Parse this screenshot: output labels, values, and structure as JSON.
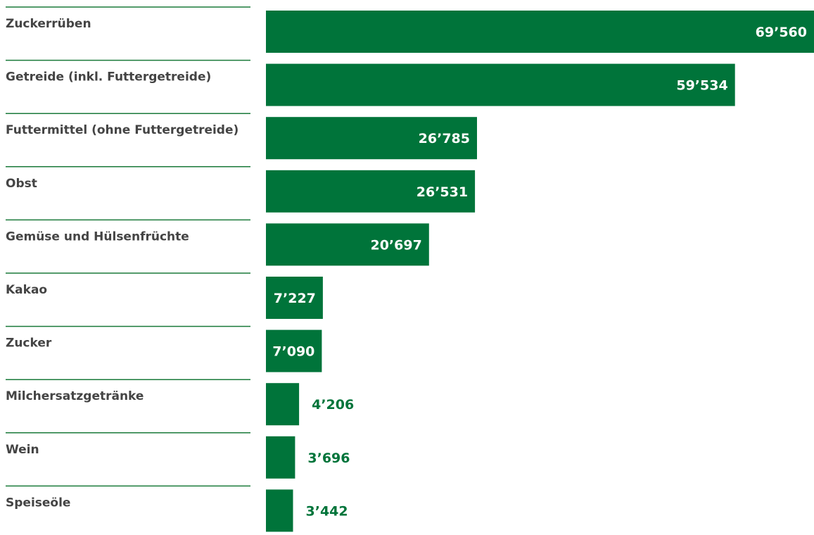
{
  "chart_data": {
    "type": "bar",
    "orientation": "horizontal",
    "categories": [
      "Zuckerrüben",
      "Getreide (inkl. Futtergetreide)",
      "Futtermittel (ohne Futtergetreide)",
      "Obst",
      "Gemüse und Hülsenfrüchte",
      "Kakao",
      "Zucker",
      "Milchersatzgetränke",
      "Wein",
      "Speiseöle"
    ],
    "values": [
      69560,
      59534,
      26785,
      26531,
      20697,
      7227,
      7090,
      4206,
      3696,
      3442
    ],
    "value_labels": [
      "69’560",
      "59’534",
      "26’785",
      "26’531",
      "20’697",
      "7’227",
      "7’090",
      "4’206",
      "3’696",
      "3’442"
    ],
    "title": "",
    "xlabel": "",
    "ylabel": "",
    "xlim": [
      0,
      69560
    ],
    "grid": false,
    "legend": "none",
    "colors": {
      "bar": "#00743a",
      "value_inside": "#ffffff",
      "value_outside": "#00743a",
      "label": "#444444",
      "divider": "#1a7a3a"
    }
  }
}
